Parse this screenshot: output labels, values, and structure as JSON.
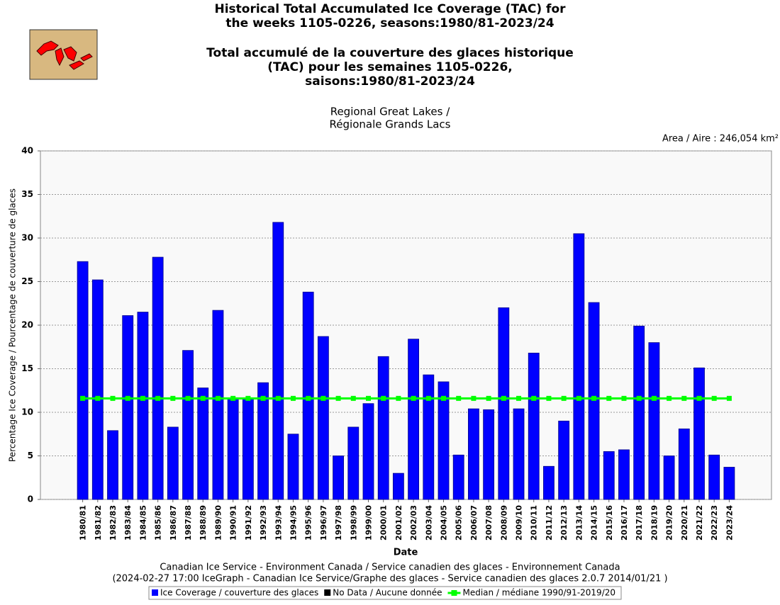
{
  "chart_data": {
    "type": "bar",
    "title_en": [
      "Historical Total Accumulated Ice Coverage (TAC) for",
      "the weeks 1105-0226, seasons:1980/81-2023/24"
    ],
    "title_fr": [
      "Total accumulé de la couverture des glaces historique",
      "(TAC) pour les semaines 1105-0226,",
      "saisons:1980/81-2023/24"
    ],
    "subtitle": [
      "Regional Great Lakes /",
      "Régionale Grands Lacs"
    ],
    "area": "Area / Aire : 246,054 km²",
    "y_label": "Percentage Ice Coverage / Pourcentage de couverture de glaces",
    "x_label": "Date",
    "footer": [
      "Canadian Ice Service - Environment Canada / Service canadien des glaces - Environnement Canada",
      "(2024-02-27 17:00 IceGraph - Canadian Ice Service/Graphe des glaces - Service canadien des glaces 2.0.7 2014/01/21 )"
    ],
    "categories": [
      "1980/81",
      "1981/82",
      "1982/83",
      "1983/84",
      "1984/85",
      "1985/86",
      "1986/87",
      "1987/88",
      "1988/89",
      "1989/90",
      "1990/91",
      "1991/92",
      "1992/93",
      "1993/94",
      "1994/95",
      "1995/96",
      "1996/97",
      "1997/98",
      "1998/99",
      "1999/00",
      "2000/01",
      "2001/02",
      "2002/03",
      "2003/04",
      "2004/05",
      "2005/06",
      "2006/07",
      "2007/08",
      "2008/09",
      "2009/10",
      "2010/11",
      "2011/12",
      "2012/13",
      "2013/14",
      "2014/15",
      "2015/16",
      "2016/17",
      "2017/18",
      "2018/19",
      "2019/20",
      "2020/21",
      "2021/22",
      "2022/23",
      "2023/24"
    ],
    "series": [
      {
        "name": "Ice Coverage / couverture des glaces",
        "color": "#0000ff",
        "type": "bar",
        "values": [
          27.3,
          25.2,
          7.9,
          21.1,
          21.5,
          27.8,
          8.3,
          17.1,
          12.8,
          21.7,
          11.6,
          11.6,
          13.4,
          31.8,
          7.5,
          23.8,
          18.7,
          5.0,
          8.3,
          11.0,
          16.4,
          3.0,
          18.4,
          14.3,
          13.5,
          5.1,
          10.4,
          10.3,
          22.0,
          10.4,
          16.8,
          3.8,
          9.0,
          30.5,
          22.6,
          5.5,
          5.7,
          19.9,
          18.0,
          5.0,
          8.1,
          15.1,
          5.1,
          3.7
        ]
      },
      {
        "name": "Median / médiane 1990/91-2019/20",
        "color": "#00ff00",
        "type": "line",
        "values": [
          11.6,
          11.6,
          11.6,
          11.6,
          11.6,
          11.6,
          11.6,
          11.6,
          11.6,
          11.6,
          11.6,
          11.6,
          11.6,
          11.6,
          11.6,
          11.6,
          11.6,
          11.6,
          11.6,
          11.6,
          11.6,
          11.6,
          11.6,
          11.6,
          11.6,
          11.6,
          11.6,
          11.6,
          11.6,
          11.6,
          11.6,
          11.6,
          11.6,
          11.6,
          11.6,
          11.6,
          11.6,
          11.6,
          11.6,
          11.6,
          11.6,
          11.6,
          11.6,
          11.6
        ]
      }
    ],
    "no_data": {
      "name": "No Data / Aucune donnée",
      "color": "#000000"
    },
    "ylim": [
      0,
      40
    ],
    "yticks": [
      0,
      5,
      10,
      15,
      20,
      25,
      30,
      35,
      40
    ],
    "grid": true
  }
}
